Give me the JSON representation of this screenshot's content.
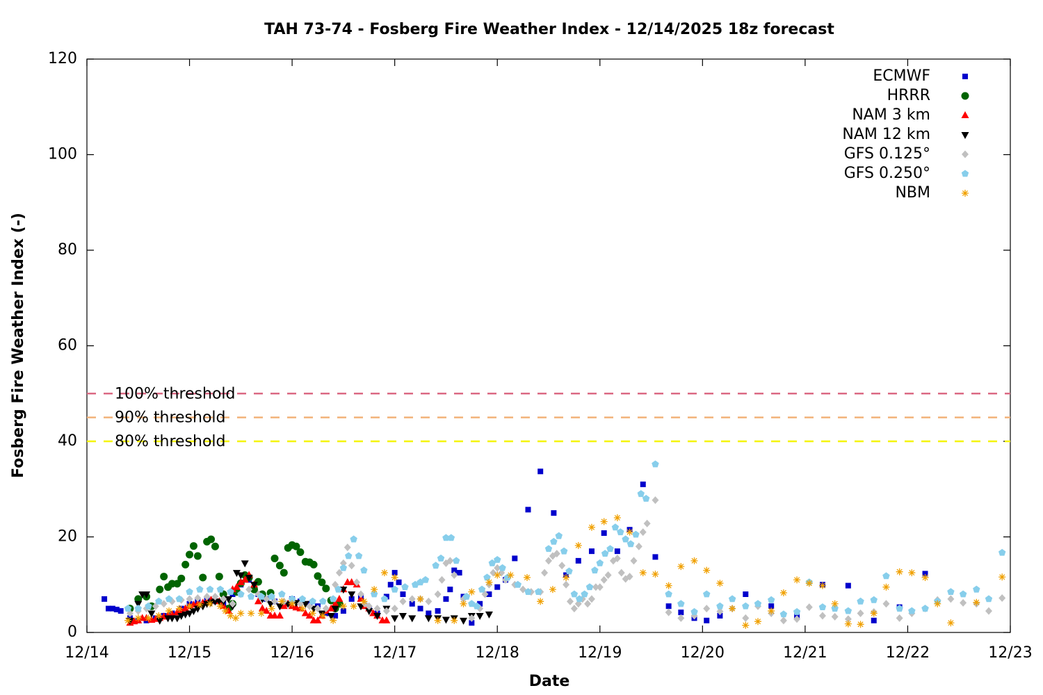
{
  "chart_data": {
    "type": "scatter",
    "title": "TAH 73-74 - Fosberg Fire Weather Index - 12/14/2025 18z forecast",
    "xlabel": "Date",
    "ylabel": "Fosberg Fire Weather Index (-)",
    "xlim": [
      0,
      9
    ],
    "ylim": [
      0,
      120
    ],
    "xticks": [
      {
        "value": 0,
        "label": "12/14"
      },
      {
        "value": 1,
        "label": "12/15"
      },
      {
        "value": 2,
        "label": "12/16"
      },
      {
        "value": 3,
        "label": "12/17"
      },
      {
        "value": 4,
        "label": "12/18"
      },
      {
        "value": 5,
        "label": "12/19"
      },
      {
        "value": 6,
        "label": "12/20"
      },
      {
        "value": 7,
        "label": "12/21"
      },
      {
        "value": 8,
        "label": "12/22"
      },
      {
        "value": 9,
        "label": "12/23"
      }
    ],
    "yticks": [
      0,
      20,
      40,
      60,
      80,
      100,
      120
    ],
    "grid": false,
    "legend": "upper right",
    "thresholds": [
      {
        "label": "100% threshold",
        "value": 50,
        "color": "#db6a84"
      },
      {
        "label": "90% threshold",
        "value": 45,
        "color": "#f2b27a"
      },
      {
        "label": "80% threshold",
        "value": 40,
        "color": "#f5f500"
      }
    ],
    "series": [
      {
        "name": "ECMWF",
        "color": "#0000cc",
        "marker": "square",
        "x": [
          0.17,
          0.21,
          0.25,
          0.29,
          0.33,
          0.42,
          0.5,
          0.58,
          0.67,
          0.75,
          0.83,
          0.92,
          1.0,
          1.08,
          1.17,
          1.25,
          1.33,
          1.42,
          1.5,
          1.58,
          1.67,
          1.75,
          1.83,
          1.92,
          2.0,
          2.08,
          2.17,
          2.25,
          2.33,
          2.42,
          2.5,
          2.58,
          2.67,
          2.75,
          2.83,
          2.92,
          2.96,
          3.0,
          3.04,
          3.08,
          3.17,
          3.25,
          3.33,
          3.42,
          3.5,
          3.54,
          3.58,
          3.63,
          3.67,
          3.75,
          3.83,
          3.92,
          4.0,
          4.08,
          4.17,
          4.3,
          4.42,
          4.55,
          4.67,
          4.79,
          4.92,
          5.04,
          5.17,
          5.29,
          5.42,
          5.54,
          5.67,
          5.79,
          5.92,
          6.04,
          6.17,
          6.42,
          6.67,
          6.92,
          7.17,
          7.42,
          7.67,
          7.92,
          8.17
        ],
        "values": [
          7,
          5,
          5,
          4.8,
          4.5,
          3,
          2.5,
          2.5,
          3,
          3.5,
          4,
          5,
          6,
          6.5,
          6.8,
          6.5,
          6,
          8,
          10,
          11,
          8,
          7,
          6.5,
          6,
          7,
          6.5,
          6,
          5.5,
          4,
          3.5,
          4.5,
          7,
          7.5,
          5,
          4,
          7.5,
          10,
          12.5,
          10.5,
          8,
          6,
          5,
          4,
          4.5,
          7,
          9,
          13,
          12.5,
          7.5,
          2,
          6,
          8,
          9.5,
          11,
          15.5,
          25.7,
          33.7,
          25,
          12,
          15,
          17,
          20.8,
          17,
          21.5,
          31,
          15.8,
          5.5,
          4.2,
          3,
          2.5,
          3.5,
          8,
          5.5,
          3.5,
          10,
          9.8,
          2.5,
          5.3,
          12.3
        ]
      },
      {
        "name": "HRRR",
        "color": "#006400",
        "marker": "circle",
        "x": [
          0.42,
          0.5,
          0.58,
          0.63,
          0.71,
          0.75,
          0.79,
          0.83,
          0.88,
          0.92,
          0.96,
          1.0,
          1.04,
          1.08,
          1.13,
          1.17,
          1.21,
          1.25,
          1.29,
          1.33,
          1.38,
          1.42,
          1.46,
          1.5,
          1.54,
          1.58,
          1.63,
          1.67,
          1.71,
          1.79,
          1.83,
          1.88,
          1.92,
          1.96,
          2.0,
          2.04,
          2.08,
          2.13,
          2.17,
          2.21,
          2.25,
          2.29,
          2.33,
          2.38,
          2.42,
          2.46
        ],
        "values": [
          5,
          7,
          7.5,
          5.5,
          9,
          11.7,
          9.5,
          10.2,
          10.2,
          11.3,
          14.2,
          16.3,
          18.1,
          16,
          11.5,
          19,
          19.5,
          18,
          11.7,
          8,
          5,
          6,
          8.5,
          10.3,
          12,
          11.5,
          9,
          10.6,
          8,
          8.3,
          15.5,
          14,
          12.5,
          17.7,
          18.3,
          18,
          16.8,
          14.8,
          14.7,
          14.2,
          11.8,
          10.5,
          9.2,
          6.7,
          5,
          6
        ]
      },
      {
        "name": "NAM 3 km",
        "color": "#ff0000",
        "marker": "triangle",
        "x": [
          0.42,
          0.46,
          0.5,
          0.54,
          0.58,
          0.63,
          0.67,
          0.71,
          0.75,
          0.79,
          0.83,
          0.88,
          0.92,
          0.96,
          1.0,
          1.04,
          1.08,
          1.13,
          1.17,
          1.21,
          1.25,
          1.29,
          1.33,
          1.38,
          1.42,
          1.46,
          1.5,
          1.54,
          1.58,
          1.63,
          1.67,
          1.71,
          1.75,
          1.79,
          1.83,
          1.88,
          1.92,
          1.96,
          2.0,
          2.04,
          2.08,
          2.13,
          2.17,
          2.21,
          2.25,
          2.29,
          2.33,
          2.38,
          2.42,
          2.46,
          2.5,
          2.54,
          2.58,
          2.63,
          2.67,
          2.71,
          2.75,
          2.79,
          2.83,
          2.88,
          2.92
        ],
        "values": [
          2,
          2.3,
          2.5,
          3,
          3,
          2.6,
          2.8,
          3,
          3.3,
          3.5,
          3.8,
          4.2,
          4.5,
          5,
          5.5,
          5.8,
          6,
          6.2,
          6.5,
          6.8,
          7,
          6.5,
          5.5,
          4.5,
          9,
          9.5,
          10.5,
          11,
          12,
          10,
          6.5,
          5,
          4.5,
          3.5,
          3.5,
          3.5,
          5.5,
          6,
          5.5,
          5.2,
          5,
          4,
          3.5,
          2.5,
          2.5,
          3.5,
          4.5,
          5,
          6,
          7,
          9,
          10.5,
          10.5,
          10,
          7,
          5.5,
          5,
          4,
          3.5,
          2.5,
          2.5
        ]
      },
      {
        "name": "NAM 12 km",
        "color": "#000000",
        "marker": "triangle-down",
        "x": [
          0.42,
          0.5,
          0.54,
          0.58,
          0.63,
          0.71,
          0.79,
          0.83,
          0.88,
          0.92,
          0.96,
          1.0,
          1.04,
          1.08,
          1.13,
          1.17,
          1.21,
          1.25,
          1.29,
          1.33,
          1.38,
          1.42,
          1.46,
          1.5,
          1.54,
          1.58,
          1.63,
          1.71,
          1.79,
          1.88,
          1.96,
          2.04,
          2.13,
          2.21,
          2.29,
          2.38,
          2.42,
          2.5,
          2.58,
          2.67,
          2.75,
          2.83,
          2.92,
          3.0,
          3.08,
          3.17,
          3.33,
          3.42,
          3.5,
          3.58,
          3.67,
          3.75,
          3.83,
          3.92
        ],
        "values": [
          2.5,
          6,
          8,
          8,
          4,
          2.5,
          3,
          3,
          3,
          3.5,
          3.8,
          4,
          4.5,
          5,
          5.5,
          6,
          6.3,
          6.5,
          6.5,
          6.5,
          7,
          5.5,
          12.5,
          12,
          14.5,
          11.5,
          10,
          7,
          6,
          5.5,
          6,
          6.2,
          6,
          5,
          4,
          3.5,
          5,
          9,
          8,
          5.5,
          4.5,
          3.5,
          5,
          3,
          3.5,
          3,
          3,
          3,
          2.7,
          3,
          2.5,
          3.5,
          3.5,
          3.8
        ]
      },
      {
        "name": "GFS 0.125°",
        "color": "#c0c0c0",
        "marker": "diamond",
        "x": [
          0.42,
          0.5,
          0.58,
          0.67,
          0.75,
          0.83,
          0.92,
          1.0,
          1.08,
          1.17,
          1.25,
          1.33,
          1.42,
          1.5,
          1.58,
          1.67,
          1.75,
          1.83,
          1.92,
          2.0,
          2.08,
          2.17,
          2.25,
          2.33,
          2.42,
          2.46,
          2.5,
          2.54,
          2.58,
          2.63,
          2.67,
          2.71,
          2.75,
          2.83,
          2.92,
          3.0,
          3.08,
          3.17,
          3.25,
          3.33,
          3.42,
          3.46,
          3.5,
          3.54,
          3.58,
          3.67,
          3.75,
          3.83,
          3.88,
          3.92,
          3.96,
          4.0,
          4.04,
          4.08,
          4.17,
          4.25,
          4.33,
          4.42,
          4.46,
          4.5,
          4.54,
          4.58,
          4.63,
          4.67,
          4.71,
          4.75,
          4.79,
          4.83,
          4.88,
          4.92,
          4.96,
          5.0,
          5.04,
          5.08,
          5.13,
          5.17,
          5.21,
          5.25,
          5.29,
          5.33,
          5.38,
          5.42,
          5.46,
          5.54,
          5.67,
          5.79,
          5.92,
          6.04,
          6.17,
          6.29,
          6.42,
          6.54,
          6.67,
          6.79,
          6.92,
          7.04,
          7.17,
          7.29,
          7.42,
          7.54,
          7.67,
          7.79,
          7.92,
          8.04,
          8.17,
          8.29,
          8.42,
          8.54,
          8.67,
          8.79,
          8.92
        ],
        "values": [
          4,
          4.5,
          5,
          5.5,
          6,
          6.5,
          6.8,
          7,
          7.2,
          7.5,
          7.5,
          7,
          6,
          8,
          9,
          8,
          7,
          6.5,
          6.5,
          6.5,
          6,
          5.5,
          5,
          5,
          10,
          12.5,
          14.5,
          17.8,
          14,
          10.5,
          8,
          6,
          5.5,
          5,
          4.5,
          5,
          6.5,
          7,
          7,
          6.5,
          8,
          11,
          14.5,
          15,
          12,
          7,
          3,
          5,
          8,
          10,
          12.5,
          13.5,
          12.5,
          11,
          10,
          9,
          8.5,
          8.5,
          12.5,
          15,
          16,
          16.5,
          14,
          10,
          6.5,
          5,
          6,
          7,
          6,
          7,
          9.5,
          9.5,
          11,
          12,
          15,
          15.5,
          12.5,
          11.2,
          11.7,
          15,
          18,
          21,
          22.8,
          27.7,
          4.2,
          3,
          3.5,
          5,
          4.4,
          5,
          3,
          5.5,
          4,
          2.5,
          2.8,
          5.3,
          3.5,
          3.3,
          2.8,
          4,
          4.3,
          6,
          3,
          4,
          5,
          6.8,
          7,
          6.2,
          6,
          4.5,
          7.2
        ]
      },
      {
        "name": "GFS 0.250°",
        "color": "#87ceeb",
        "marker": "pentagon",
        "x": [
          0.4,
          0.5,
          0.6,
          0.7,
          0.8,
          0.9,
          1.0,
          1.1,
          1.2,
          1.3,
          1.4,
          1.5,
          1.6,
          1.7,
          1.8,
          1.9,
          2.0,
          2.1,
          2.2,
          2.3,
          2.4,
          2.45,
          2.5,
          2.55,
          2.6,
          2.65,
          2.7,
          2.8,
          2.9,
          3.0,
          3.1,
          3.2,
          3.25,
          3.3,
          3.4,
          3.45,
          3.5,
          3.55,
          3.6,
          3.7,
          3.75,
          3.8,
          3.85,
          3.9,
          3.95,
          4.0,
          4.05,
          4.1,
          4.2,
          4.3,
          4.4,
          4.5,
          4.55,
          4.6,
          4.65,
          4.7,
          4.75,
          4.8,
          4.85,
          4.9,
          4.95,
          5.0,
          5.05,
          5.1,
          5.15,
          5.2,
          5.25,
          5.3,
          5.35,
          5.4,
          5.45,
          5.54,
          5.67,
          5.79,
          5.92,
          6.04,
          6.17,
          6.29,
          6.42,
          6.54,
          6.67,
          6.79,
          6.92,
          7.04,
          7.17,
          7.29,
          7.42,
          7.54,
          7.67,
          7.79,
          7.92,
          8.04,
          8.17,
          8.29,
          8.42,
          8.54,
          8.67,
          8.79,
          8.92
        ],
        "values": [
          5,
          5,
          5.5,
          6.5,
          7,
          7,
          8.5,
          9,
          9,
          9,
          8.5,
          8,
          7.5,
          7.5,
          7.5,
          8,
          7,
          7,
          6.5,
          6.5,
          7,
          9,
          13.5,
          16,
          19.5,
          16,
          13,
          8,
          7,
          9,
          9.5,
          10,
          10.5,
          11,
          14,
          15.5,
          19.8,
          19.8,
          15,
          7.5,
          6,
          5.5,
          9,
          11.5,
          14.5,
          15.2,
          13.5,
          11.5,
          10,
          8.5,
          8.5,
          17.5,
          19,
          20.2,
          17,
          12.8,
          8,
          7,
          8,
          9.5,
          13,
          14.5,
          16.5,
          17.5,
          22,
          21,
          19.5,
          18.5,
          20.5,
          29,
          28,
          35.2,
          8,
          6,
          4.3,
          8,
          5.5,
          7,
          5.5,
          6,
          6.8,
          3.8,
          4.3,
          10.5,
          5.3,
          5,
          4.5,
          6.5,
          6.8,
          11.8,
          5,
          4.5,
          5,
          6.5,
          8.5,
          8,
          9,
          7,
          16.7
        ]
      },
      {
        "name": "NBM",
        "color": "#f0a000",
        "marker": "asterisk",
        "x": [
          0.4,
          0.5,
          0.6,
          0.7,
          0.8,
          0.9,
          1.0,
          1.1,
          1.2,
          1.3,
          1.35,
          1.4,
          1.45,
          1.5,
          1.6,
          1.7,
          1.8,
          1.9,
          2.0,
          2.1,
          2.2,
          2.3,
          2.4,
          2.5,
          2.6,
          2.7,
          2.8,
          2.9,
          3.0,
          3.25,
          3.42,
          3.58,
          3.67,
          3.75,
          3.92,
          4.0,
          4.13,
          4.29,
          4.42,
          4.54,
          4.67,
          4.79,
          4.92,
          5.04,
          5.17,
          5.29,
          5.42,
          5.54,
          5.67,
          5.79,
          5.92,
          6.04,
          6.17,
          6.29,
          6.42,
          6.54,
          6.67,
          6.79,
          6.92,
          7.04,
          7.17,
          7.29,
          7.42,
          7.54,
          7.67,
          7.79,
          7.92,
          8.04,
          8.17,
          8.29,
          8.42,
          8.67,
          8.92
        ],
        "values": [
          2.5,
          3,
          3,
          3.5,
          4.5,
          5,
          5.5,
          5.8,
          6,
          5.5,
          4.5,
          3.5,
          3,
          4,
          4,
          4,
          5,
          6.5,
          6,
          5,
          4,
          3.5,
          2.5,
          5.5,
          5.5,
          6.5,
          9,
          12.5,
          11.5,
          7,
          2.5,
          2.5,
          6,
          8.5,
          10.5,
          12,
          12,
          11.5,
          6.5,
          9,
          11.5,
          18.2,
          22,
          23.2,
          24,
          21,
          12.5,
          12.2,
          9.8,
          13.8,
          15,
          13,
          10.3,
          5,
          1.5,
          2.3,
          4.5,
          8.3,
          11,
          10.3,
          9.8,
          6,
          1.8,
          1.7,
          4,
          9.5,
          12.7,
          12.5,
          11.5,
          6,
          2,
          6.3,
          11.6
        ]
      }
    ]
  }
}
